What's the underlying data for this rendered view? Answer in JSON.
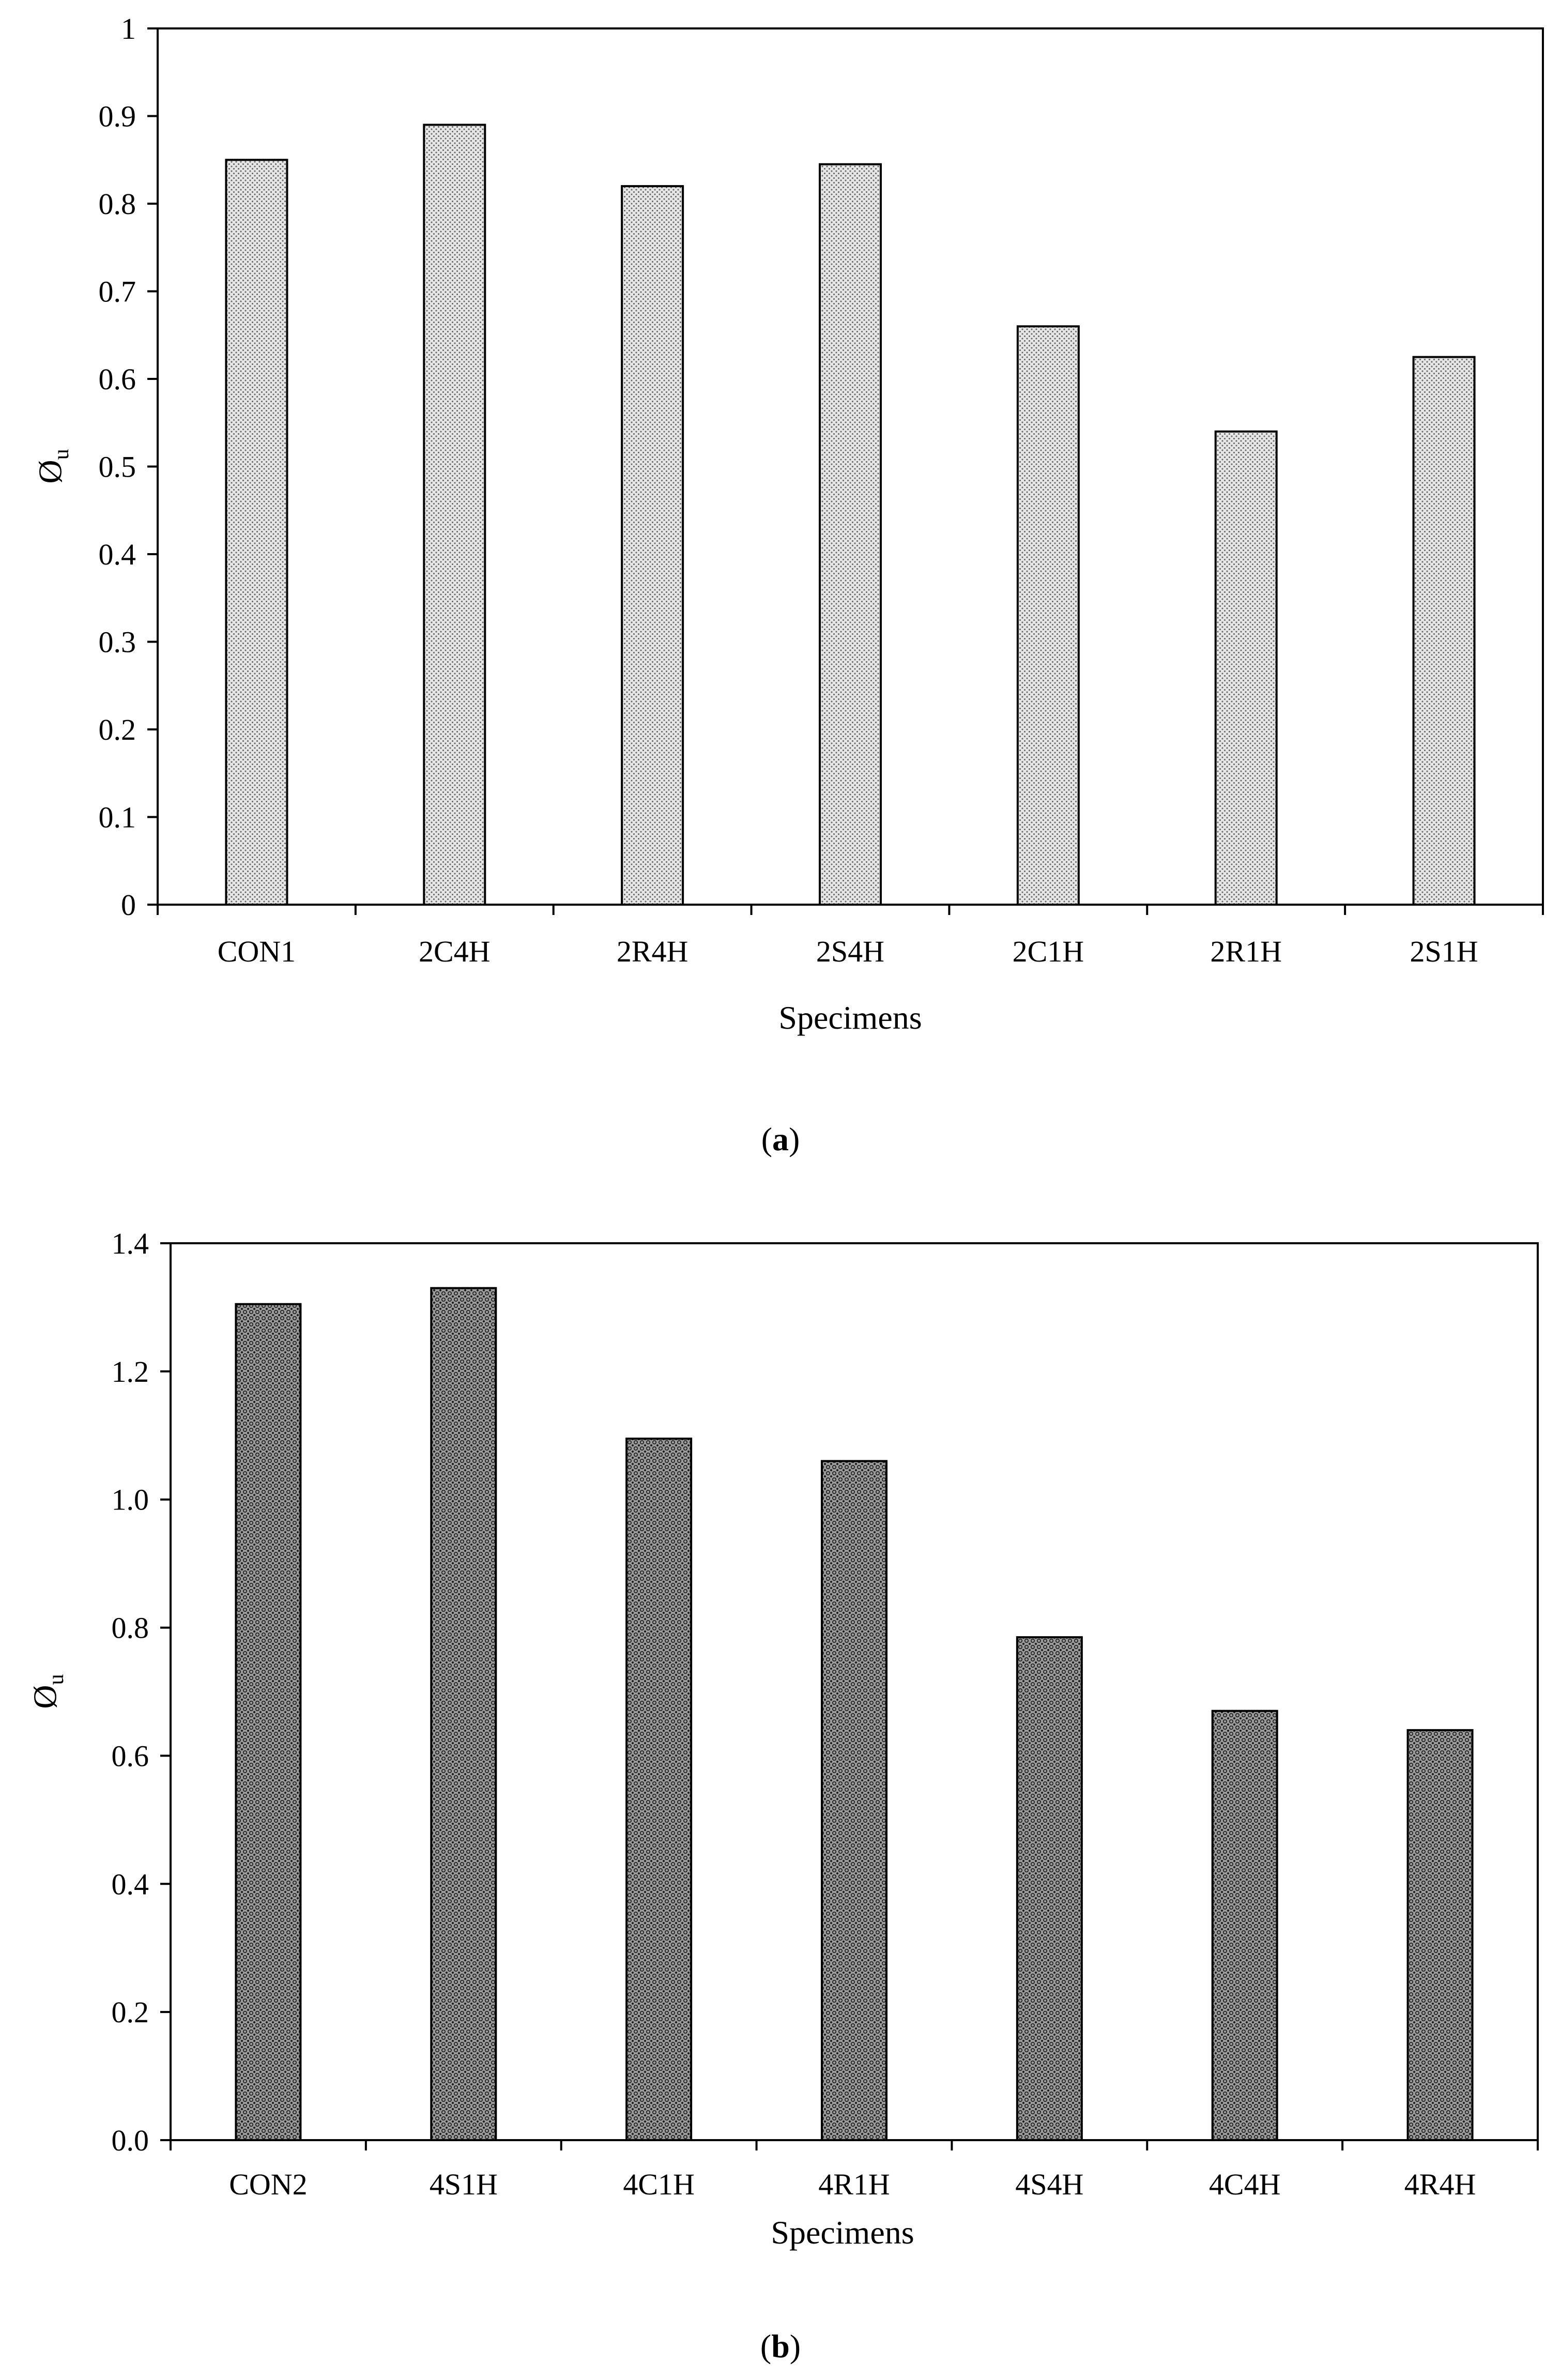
{
  "chart_data": [
    {
      "type": "bar",
      "panel_label": {
        "open": "(",
        "letter": "a",
        "close": ")"
      },
      "categories": [
        "CON1",
        "2C4H",
        "2R4H",
        "2S4H",
        "2C1H",
        "2R1H",
        "2S1H"
      ],
      "values": [
        0.85,
        0.89,
        0.82,
        0.845,
        0.66,
        0.54,
        0.625
      ],
      "xlabel": "Specimens",
      "ylabel": {
        "base": "Ø",
        "sub": "u"
      },
      "ylim": [
        0,
        1
      ],
      "yticks": [
        "0",
        "0.1",
        "0.2",
        "0.3",
        "0.4",
        "0.5",
        "0.6",
        "0.7",
        "0.8",
        "0.9",
        "1"
      ],
      "grid": false,
      "legend": "none",
      "bar_fill": "dotted light gray",
      "colors": {
        "bar_base": "#e6e6e6",
        "bar_dot": "#6e6e6e",
        "edge": "#000000"
      }
    },
    {
      "type": "bar",
      "panel_label": {
        "open": "(",
        "letter": "b",
        "close": ")"
      },
      "categories": [
        "CON2",
        "4S1H",
        "4C1H",
        "4R1H",
        "4S4H",
        "4C4H",
        "4R4H"
      ],
      "values": [
        1.305,
        1.33,
        1.095,
        1.06,
        0.785,
        0.67,
        0.64
      ],
      "xlabel": "Specimens",
      "ylabel": {
        "base": "Ø",
        "sub": "u"
      },
      "ylim": [
        0,
        1.4
      ],
      "yticks": [
        "0.0",
        "0.2",
        "0.4",
        "0.6",
        "0.8",
        "1.0",
        "1.2",
        "1.4"
      ],
      "grid": false,
      "legend": "none",
      "bar_fill": "dark checkered",
      "colors": {
        "bar_base": "#9a9a9a",
        "bar_dot": "#1a1a1a",
        "edge": "#000000"
      }
    }
  ]
}
